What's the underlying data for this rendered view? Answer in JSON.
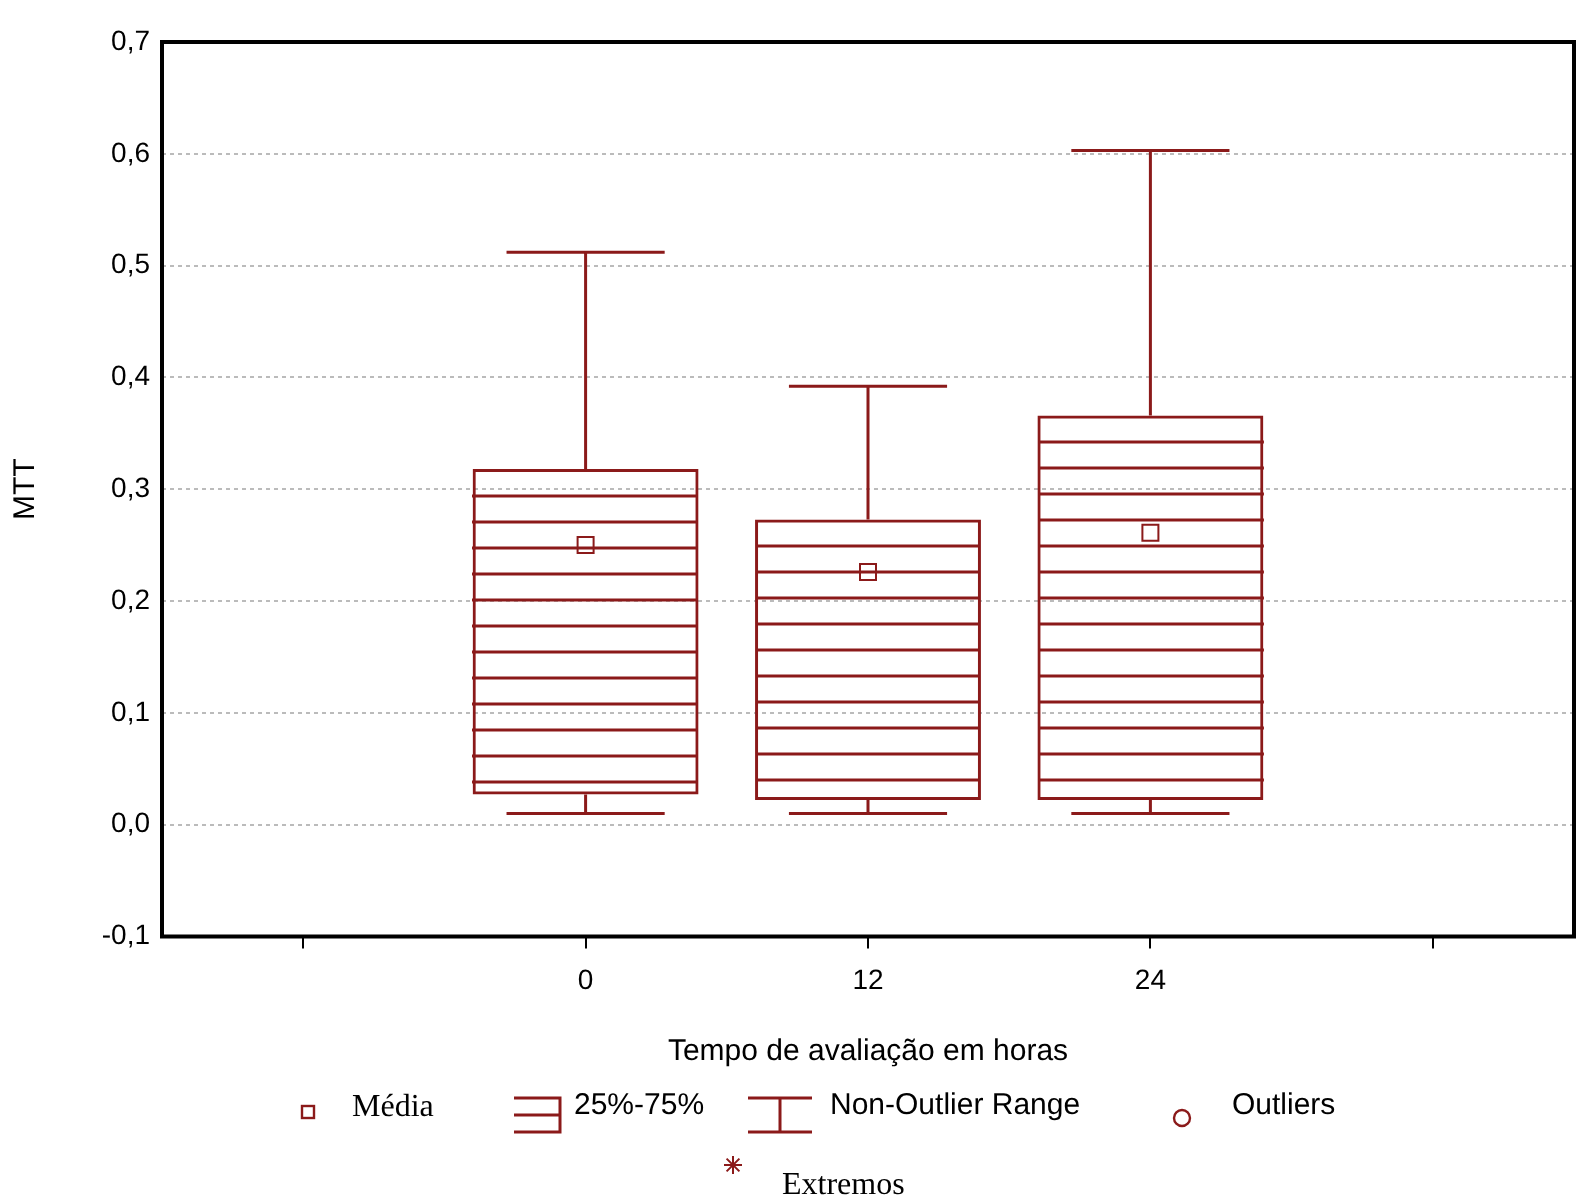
{
  "chart_data": {
    "type": "box",
    "xlabel": "Tempo de avaliação em horas",
    "ylabel": "MTT",
    "categories": [
      null,
      "0",
      "12",
      "24",
      null
    ],
    "series": [
      {
        "color": "#8b1a1a",
        "boxes": [
          null,
          {
            "low": 0.01,
            "q1": 0.027,
            "q3": 0.318,
            "high": 0.512,
            "mean": 0.25
          },
          {
            "low": 0.01,
            "q1": 0.022,
            "q3": 0.273,
            "high": 0.392,
            "mean": 0.226
          },
          {
            "low": 0.01,
            "q1": 0.022,
            "q3": 0.366,
            "high": 0.603,
            "mean": 0.261
          },
          null
        ]
      }
    ],
    "ylim": [
      -0.1,
      0.7
    ],
    "yticks": [
      {
        "value": -0.1,
        "label": "-0,1"
      },
      {
        "value": 0,
        "label": "0,0"
      },
      {
        "value": 0.1,
        "label": "0,1"
      },
      {
        "value": 0.2,
        "label": "0,2"
      },
      {
        "value": 0.3,
        "label": "0,3"
      },
      {
        "value": 0.4,
        "label": "0,4"
      },
      {
        "value": 0.5,
        "label": "0,5"
      },
      {
        "value": 0.6,
        "label": "0,6"
      },
      {
        "value": 0.7,
        "label": "0,7"
      }
    ],
    "grid": "y",
    "annotations": [
      "Média",
      "25%-75%",
      "Non-Outlier Range",
      "Outliers",
      "Extremos"
    ]
  }
}
